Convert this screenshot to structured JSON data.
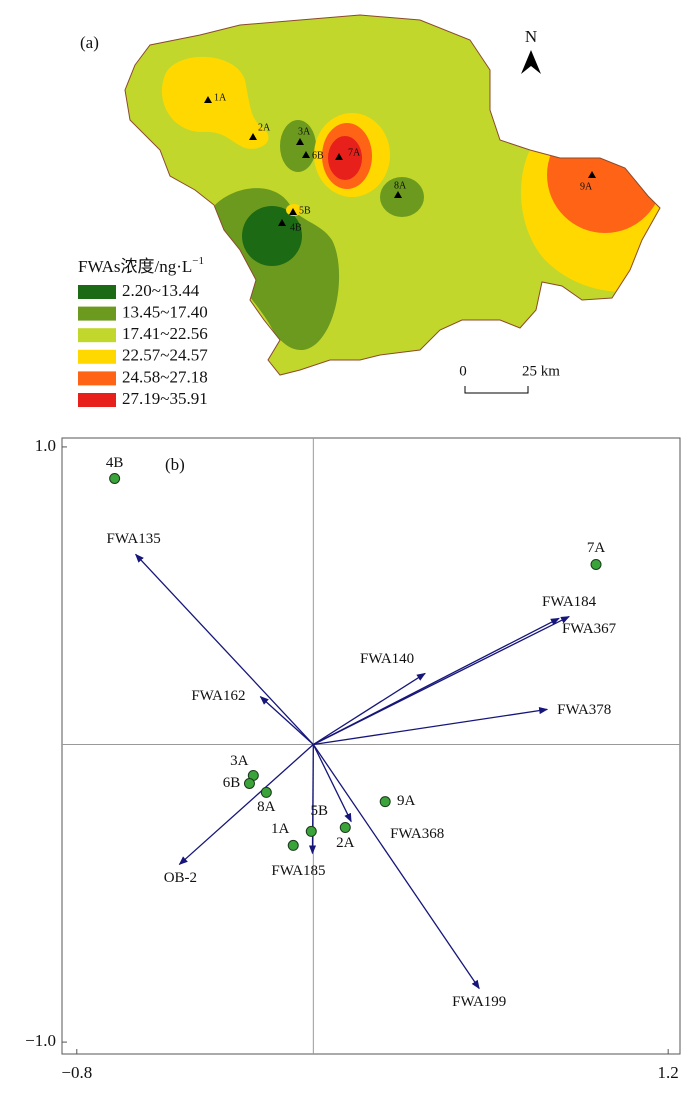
{
  "map": {
    "panel_label": "(a)",
    "north": "N",
    "legend": {
      "title": "FWAs浓度/ng·L",
      "title_sup": "−1",
      "items": [
        {
          "label": "2.20~13.44",
          "color": "#1d6a14"
        },
        {
          "label": "13.45~17.40",
          "color": "#6c9a1e"
        },
        {
          "label": "17.41~22.56",
          "color": "#c2d72c"
        },
        {
          "label": "22.57~24.57",
          "color": "#ffd800"
        },
        {
          "label": "24.58~27.18",
          "color": "#ff6416"
        },
        {
          "label": "27.19~35.91",
          "color": "#e8201b"
        }
      ]
    },
    "scale_start": "0",
    "scale_end": "25 km",
    "sites": [
      "1A",
      "2A",
      "3A",
      "6B",
      "7A",
      "8A",
      "5B",
      "4B",
      "9A"
    ]
  },
  "chart_data": {
    "type": "biplot",
    "panel_label": "(b)",
    "xlim": [
      -0.85,
      1.24
    ],
    "ylim": [
      -1.04,
      1.03
    ],
    "xticks": [
      {
        "value": -0.8,
        "label": "−0.8"
      },
      1.2
    ],
    "yticks": [
      {
        "value": 1,
        "label": "1.0"
      },
      {
        "value": -1,
        "label": "−1.0"
      }
    ],
    "points": {
      "color": "#3aa33a",
      "labels": [
        "4B",
        "7A",
        "3A",
        "6B",
        "8A",
        "1A",
        "5B",
        "2A",
        "9A"
      ],
      "x": [
        -0.672,
        0.956,
        -0.203,
        -0.216,
        -0.159,
        -0.068,
        -0.007,
        0.108,
        0.243
      ],
      "y": [
        0.894,
        0.605,
        -0.104,
        -0.131,
        -0.161,
        -0.339,
        -0.292,
        -0.279,
        -0.192
      ]
    },
    "vectors": {
      "color": "#16167a",
      "labels": [
        "FWA135",
        "FWA184",
        "FWA367",
        "FWA140",
        "FWA162",
        "FWA378",
        "FWA368",
        "FWA185",
        "OB-2",
        "FWA199"
      ],
      "x": [
        -0.601,
        0.865,
        0.831,
        0.378,
        -0.179,
        0.791,
        0.128,
        -0.003,
        -0.453,
        0.561
      ],
      "y": [
        0.639,
        0.43,
        0.424,
        0.239,
        0.161,
        0.118,
        -0.259,
        -0.366,
        -0.403,
        -0.82
      ]
    }
  }
}
